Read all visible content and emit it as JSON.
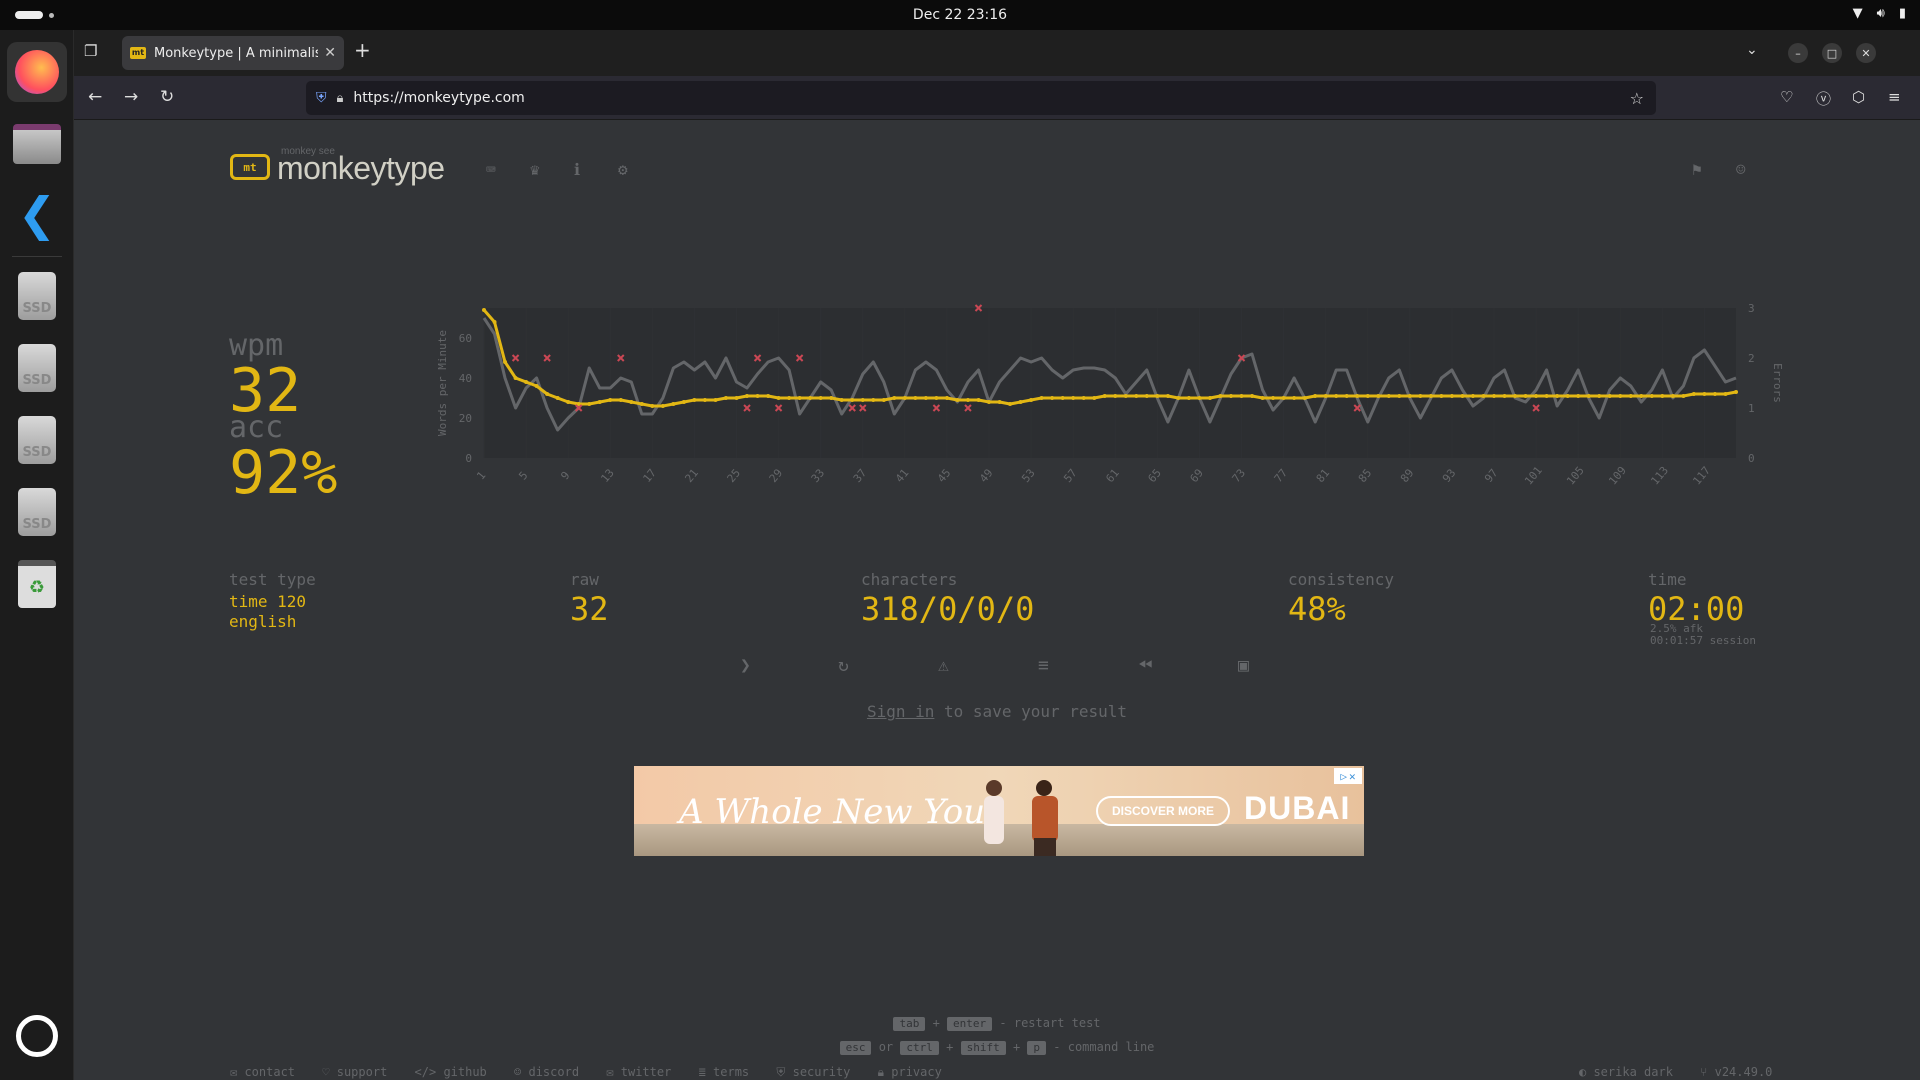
{
  "system": {
    "clock": "Dec 22  23:16"
  },
  "browser": {
    "tab_title": "Monkeytype | A minimalis",
    "url": "https://monkeytype.com"
  },
  "site": {
    "logo_small": "monkey see",
    "logo_text": "monkeytype"
  },
  "result": {
    "wpm_label": "wpm",
    "wpm_value": "32",
    "acc_label": "acc",
    "acc_value": "92%",
    "test_type_label": "test type",
    "test_type_line1": "time 120",
    "test_type_line2": "english",
    "raw_label": "raw",
    "raw_value": "32",
    "characters_label": "characters",
    "characters_value": "318/0/0/0",
    "consistency_label": "consistency",
    "consistency_value": "48%",
    "time_label": "time",
    "time_value": "02:00",
    "afk_text": "2.5% afk",
    "session_text": "00:01:57 session",
    "sign_in_link": "Sign in",
    "sign_in_rest": " to save your result"
  },
  "chart_data": {
    "type": "line",
    "ylabel": "Words per Minute",
    "y2label": "Errors",
    "ylim": [
      0,
      75
    ],
    "y2lim": [
      0,
      3
    ],
    "yticks": [
      "0",
      "20",
      "40",
      "60"
    ],
    "y2ticks": [
      "0",
      "1",
      "2",
      "3"
    ],
    "x_ticks": [
      "1",
      "5",
      "9",
      "13",
      "17",
      "21",
      "25",
      "29",
      "33",
      "37",
      "41",
      "45",
      "49",
      "53",
      "57",
      "61",
      "65",
      "69",
      "73",
      "77",
      "81",
      "85",
      "89",
      "93",
      "97",
      "101",
      "105",
      "109",
      "113",
      "117"
    ],
    "series": [
      {
        "role": "wpm",
        "color": "#e2b714",
        "values": [
          74,
          68,
          48,
          40,
          38,
          36,
          32,
          30,
          28,
          27,
          27,
          28,
          29,
          29,
          28,
          27,
          26,
          26,
          27,
          28,
          29,
          29,
          29,
          30,
          30,
          31,
          31,
          31,
          30,
          30,
          30,
          30,
          30,
          30,
          29,
          29,
          29,
          29,
          29,
          30,
          30,
          30,
          30,
          30,
          30,
          29,
          29,
          29,
          28,
          28,
          27,
          28,
          29,
          30,
          30,
          30,
          30,
          30,
          30,
          31,
          31,
          31,
          31,
          31,
          31,
          31,
          30,
          30,
          30,
          30,
          31,
          31,
          31,
          31,
          30,
          30,
          30,
          30,
          30,
          31,
          31,
          31,
          31,
          31,
          31,
          31,
          31,
          31,
          31,
          31,
          31,
          31,
          31,
          31,
          31,
          31,
          31,
          31,
          31,
          31,
          31,
          31,
          31,
          31,
          31,
          31,
          31,
          31,
          31,
          31,
          31,
          31,
          31,
          31,
          31,
          32,
          32,
          32,
          32,
          33
        ]
      },
      {
        "role": "raw",
        "color": "#646669",
        "values": [
          70,
          62,
          40,
          25,
          35,
          40,
          25,
          14,
          20,
          25,
          45,
          35,
          35,
          40,
          38,
          22,
          22,
          30,
          45,
          48,
          44,
          48,
          40,
          50,
          38,
          35,
          42,
          48,
          50,
          44,
          22,
          30,
          38,
          34,
          22,
          30,
          42,
          48,
          38,
          22,
          30,
          44,
          48,
          44,
          34,
          28,
          38,
          44,
          28,
          38,
          44,
          50,
          48,
          50,
          44,
          40,
          44,
          45,
          45,
          44,
          40,
          32,
          38,
          44,
          30,
          18,
          30,
          44,
          30,
          18,
          30,
          42,
          50,
          52,
          34,
          24,
          30,
          40,
          30,
          18,
          30,
          44,
          44,
          30,
          18,
          30,
          40,
          44,
          30,
          20,
          30,
          40,
          44,
          34,
          26,
          30,
          40,
          44,
          30,
          28,
          34,
          44,
          26,
          34,
          44,
          30,
          20,
          34,
          40,
          36,
          28,
          34,
          44,
          30,
          36,
          50,
          54,
          46,
          38,
          40
        ]
      }
    ],
    "errors": [
      {
        "x": 4,
        "e": 2
      },
      {
        "x": 7,
        "e": 2
      },
      {
        "x": 10,
        "e": 1
      },
      {
        "x": 14,
        "e": 2
      },
      {
        "x": 27,
        "e": 2
      },
      {
        "x": 26,
        "e": 1
      },
      {
        "x": 29,
        "e": 1
      },
      {
        "x": 31,
        "e": 2
      },
      {
        "x": 36,
        "e": 1
      },
      {
        "x": 37,
        "e": 1
      },
      {
        "x": 44,
        "e": 1
      },
      {
        "x": 47,
        "e": 1
      },
      {
        "x": 48,
        "e": 3
      },
      {
        "x": 73,
        "e": 2
      },
      {
        "x": 84,
        "e": 1
      },
      {
        "x": 101,
        "e": 1
      }
    ]
  },
  "footer": {
    "hint1_key1": "tab",
    "hint1_plus": "+",
    "hint1_key2": "enter",
    "hint1_text": "- restart test",
    "hint2_key1": "esc",
    "hint2_or": "or",
    "hint2_key2": "ctrl",
    "hint2_plus1": "+",
    "hint2_key3": "shift",
    "hint2_plus2": "+",
    "hint2_key4": "p",
    "hint2_text": "- command line",
    "links": [
      "contact",
      "support",
      "github",
      "discord",
      "twitter",
      "terms",
      "security",
      "privacy"
    ],
    "theme": "serika dark",
    "version": "v24.49.0"
  },
  "ad": {
    "headline": "A Whole New You",
    "cta": "DISCOVER MORE",
    "brand": "DUBAI"
  },
  "colors": {
    "accent": "#e2b714",
    "sub": "#646669",
    "bg": "#323437",
    "error": "#ca4754"
  }
}
